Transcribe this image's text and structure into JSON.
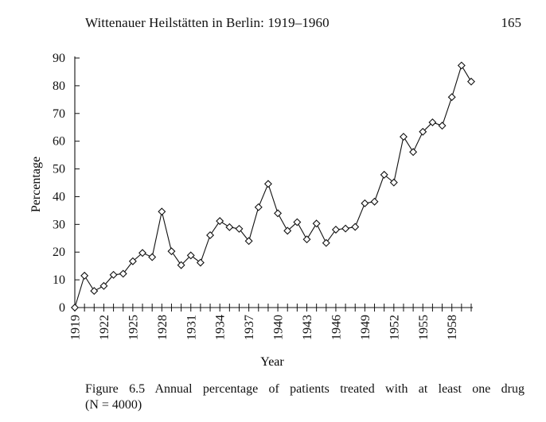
{
  "page": {
    "running_head": "Wittenauer Heilstätten in Berlin: 1919–1960",
    "page_number": "165"
  },
  "caption": {
    "line1": "Figure 6.5 Annual percentage of patients treated with at least one drug",
    "line2": "(N = 4000)"
  },
  "chart_data": {
    "type": "line",
    "title": "",
    "xlabel": "Year",
    "ylabel": "Percentage",
    "ylim": [
      0,
      90
    ],
    "yticks": [
      0,
      10,
      20,
      30,
      40,
      50,
      60,
      70,
      80,
      90
    ],
    "xlim": [
      1919,
      1960
    ],
    "xtick_labels": [
      1919,
      1922,
      1925,
      1928,
      1931,
      1934,
      1937,
      1940,
      1943,
      1946,
      1949,
      1952,
      1955,
      1958
    ],
    "marker": "diamond",
    "grid": false,
    "x": [
      1919,
      1920,
      1921,
      1922,
      1923,
      1924,
      1925,
      1926,
      1927,
      1928,
      1929,
      1930,
      1931,
      1932,
      1933,
      1934,
      1935,
      1936,
      1937,
      1938,
      1939,
      1940,
      1941,
      1942,
      1943,
      1944,
      1945,
      1946,
      1947,
      1948,
      1949,
      1950,
      1951,
      1952,
      1953,
      1954,
      1955,
      1956,
      1957,
      1958,
      1959,
      1960
    ],
    "values": [
      0,
      11.5,
      6,
      7.8,
      11.8,
      12.2,
      16.7,
      19.7,
      18.2,
      34.6,
      20.3,
      15.3,
      18.8,
      16.2,
      26.1,
      31.2,
      29,
      28.4,
      24,
      36.2,
      44.6,
      34,
      27.7,
      30.8,
      24.6,
      30.3,
      23.3,
      28.1,
      28.5,
      29.1,
      37.6,
      38.2,
      47.9,
      45.1,
      61.6,
      56.1,
      63.4,
      66.8,
      65.6,
      75.9,
      87.3,
      81.5
    ]
  }
}
